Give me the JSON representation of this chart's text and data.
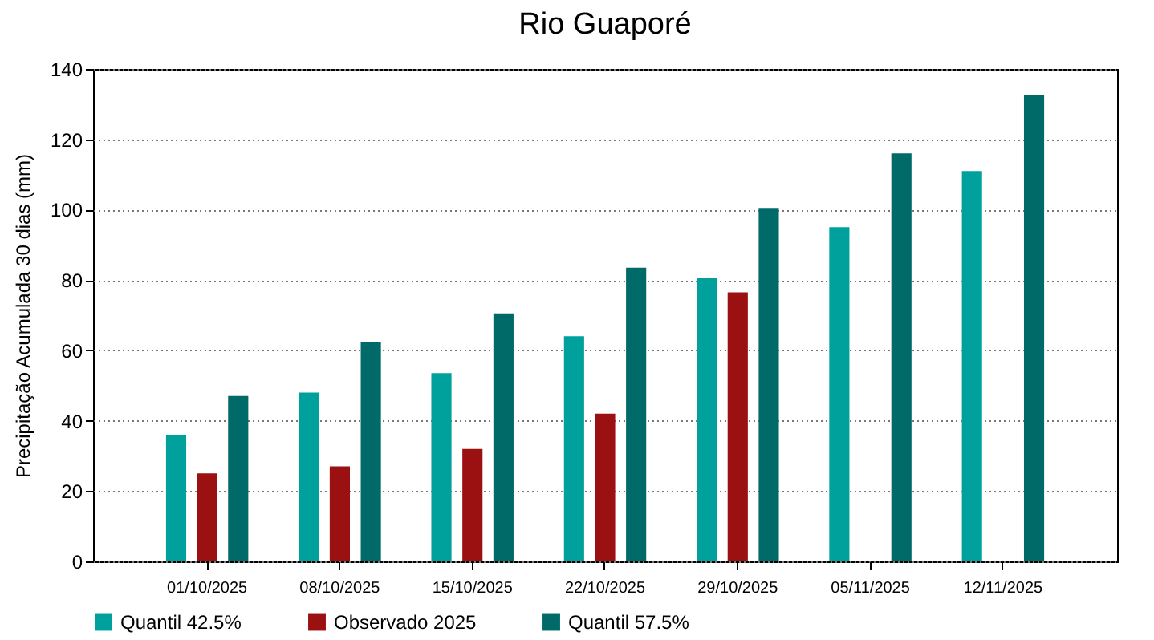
{
  "chart_data": {
    "type": "bar",
    "title": "Rio Guaporé",
    "ylabel": "Precipitação Acumulada 30 dias (mm)",
    "categories": [
      "01/10/2025",
      "08/10/2025",
      "15/10/2025",
      "22/10/2025",
      "29/10/2025",
      "05/11/2025",
      "12/11/2025"
    ],
    "series": [
      {
        "name": "Quantil 42.5%",
        "color": "#00a09c",
        "values": [
          36,
          48,
          53.5,
          64,
          80.5,
          95,
          111
        ]
      },
      {
        "name": "Observado 2025",
        "color": "#9b1010",
        "values": [
          25,
          27,
          32,
          42,
          76.5,
          null,
          null
        ]
      },
      {
        "name": "Quantil 57.5%",
        "color": "#006a68",
        "values": [
          47,
          62.5,
          70.5,
          83.5,
          100.5,
          116,
          132.5
        ]
      }
    ],
    "ylim": [
      0,
      140
    ],
    "yticks": [
      0,
      20,
      40,
      60,
      80,
      100,
      120,
      140
    ],
    "grid": "y",
    "legend": "bottom"
  }
}
